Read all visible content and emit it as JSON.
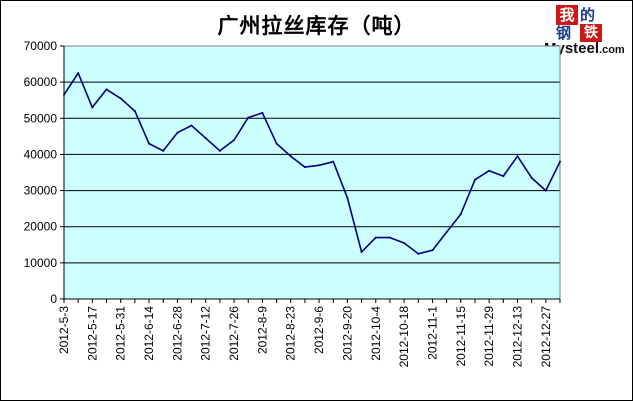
{
  "logo": {
    "char_wo": "我",
    "char_de": "的",
    "char_gang": "钢",
    "char_tie": "铁",
    "brand": "Mysteel",
    "brand_suffix": ".com"
  },
  "chart_data": {
    "type": "line",
    "title": "广州拉丝库存（吨）",
    "xlabel": "",
    "ylabel": "",
    "ylim": [
      0,
      70000
    ],
    "y_ticks": [
      0,
      10000,
      20000,
      30000,
      40000,
      50000,
      60000,
      70000
    ],
    "grid": true,
    "legend": "none",
    "x_tick_labels": [
      "2012-5-3",
      "2012-5-17",
      "2012-5-31",
      "2012-6-14",
      "2012-6-28",
      "2012-7-12",
      "2012-7-26",
      "2012-8-9",
      "2012-8-23",
      "2012-9-6",
      "2012-9-20",
      "2012-10-4",
      "2012-10-18",
      "2012-11-1",
      "2012-11-15",
      "2012-11-29",
      "2012-12-13",
      "2012-12-27"
    ],
    "series": [
      {
        "values": [
          56500,
          62500,
          53000,
          58000,
          55500,
          52000,
          43000,
          41000,
          46000,
          48000,
          44500,
          41000,
          44000,
          50200,
          51500,
          43000,
          39500,
          36500,
          37000,
          38000,
          28000,
          13000,
          17000,
          17000,
          15500,
          12500,
          13500,
          18500,
          23500,
          33000,
          35500,
          34000,
          39500,
          33500,
          30000,
          38000
        ]
      }
    ],
    "colors": {
      "plot_bg": "#ccffff",
      "line": "#000080",
      "grid": "#000000"
    }
  }
}
